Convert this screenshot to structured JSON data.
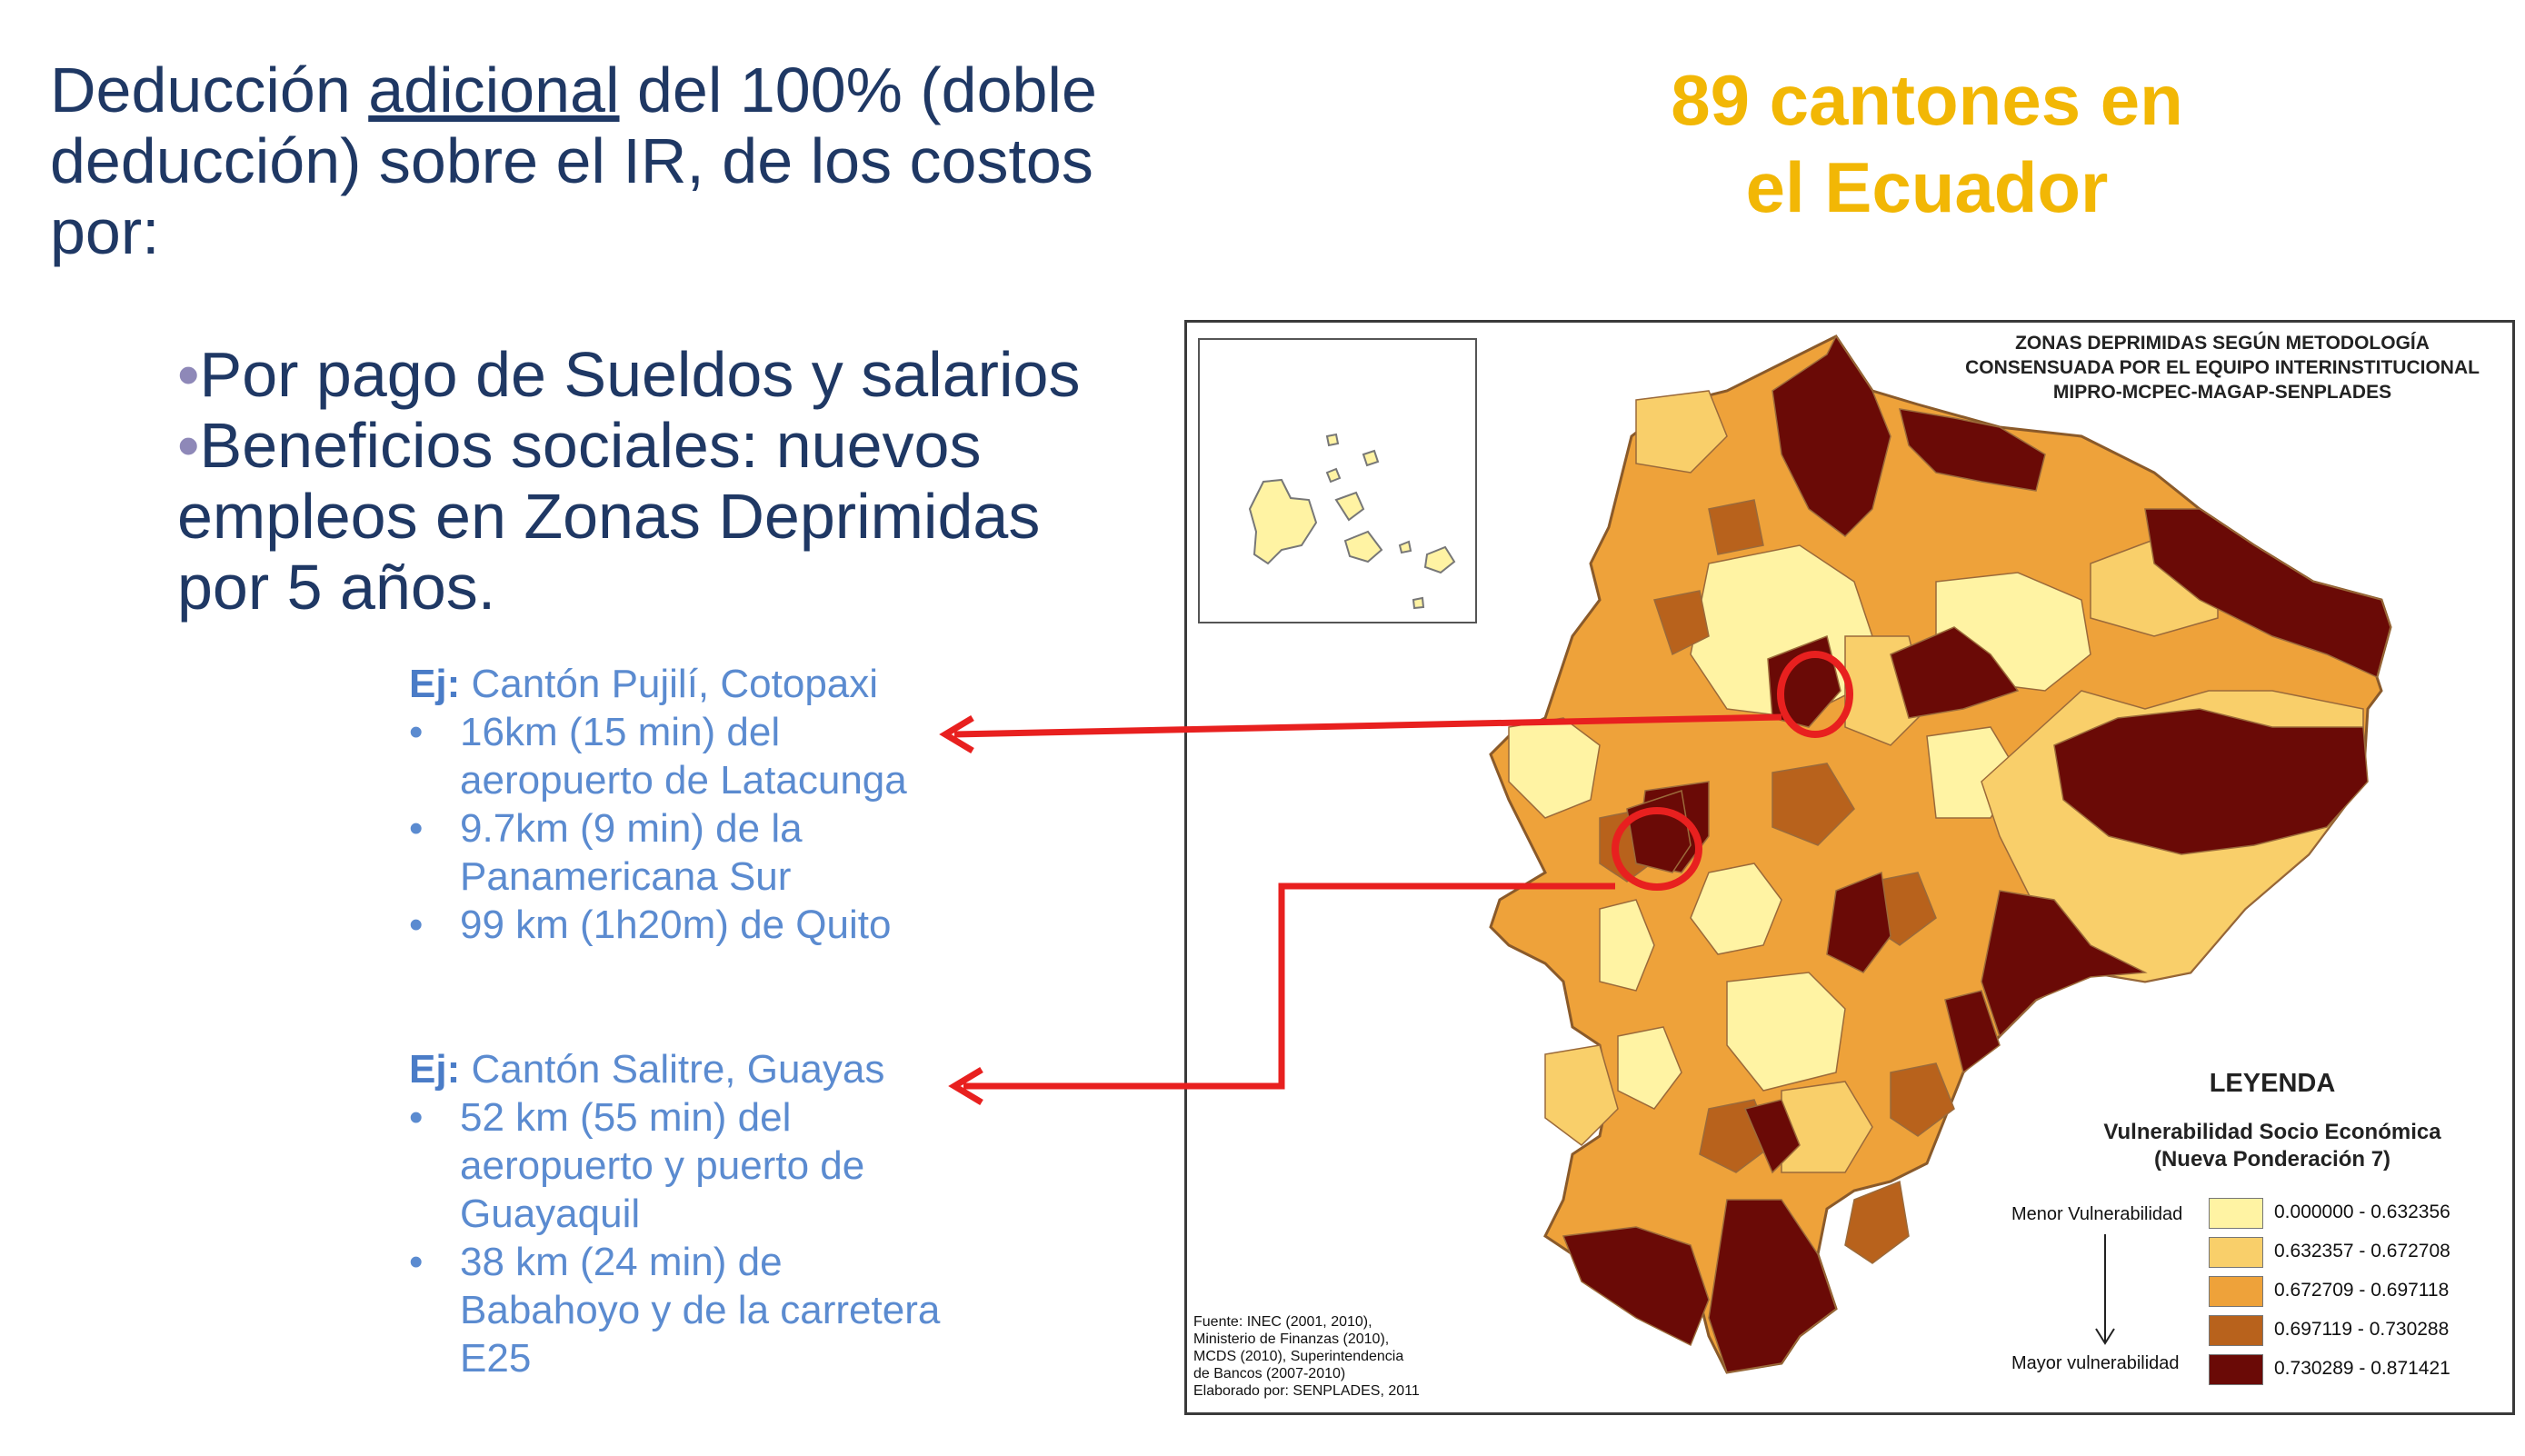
{
  "intro": {
    "part1": "Deducción ",
    "underlined": "adicional",
    "part2": " del 100% (doble deducción) sobre el IR, de los costos por:"
  },
  "bullets": [
    "Por pago de Sueldos y salarios",
    "Beneficios sociales: nuevos empleos en Zonas Deprimidas por 5 años."
  ],
  "headline": {
    "line1": "89 cantones en",
    "line2": "el Ecuador"
  },
  "examples": [
    {
      "prefix": "Ej:",
      "title": " Cantón Pujilí, Cotopaxi",
      "items": [
        "16km (15 min) del aeropuerto de Latacunga",
        "9.7km (9 min) de la Panamericana Sur",
        "99 km (1h20m) de Quito"
      ]
    },
    {
      "prefix": "Ej:",
      "title": " Cantón Salitre, Guayas",
      "items": [
        "52 km (55 min) del aeropuerto y puerto de Guayaquil",
        "38 km (24 min) de Babahoyo  y de la carretera E25"
      ]
    }
  ],
  "map": {
    "title_lines": [
      "ZONAS DEPRIMIDAS SEGÚN METODOLOGÍA",
      "CONSENSUADA POR EL EQUIPO INTERINSTITUCIONAL",
      "MIPRO-MCPEC-MAGAP-SENPLADES"
    ],
    "legend_title": "LEYENDA",
    "legend_subtitle_lines": [
      "Vulnerabilidad Socio Económica",
      "(Nueva Ponderación 7)"
    ],
    "menor_label": "Menor Vulnerabilidad",
    "mayor_label": "Mayor vulnerabilidad",
    "legend": [
      {
        "label": "0.000000 - 0.632356",
        "color": "#fff3a3"
      },
      {
        "label": "0.632357 - 0.672708",
        "color": "#f9cf6a"
      },
      {
        "label": "0.672709 - 0.697118",
        "color": "#eea23a"
      },
      {
        "label": "0.697119 - 0.730288",
        "color": "#b8621c"
      },
      {
        "label": "0.730289 - 0.871421",
        "color": "#6a0a06"
      }
    ],
    "source_lines": [
      "Fuente: INEC (2001, 2010),",
      "Ministerio de Finanzas (2010),",
      "MCDS (2010), Superintendencia",
      "de Bancos (2007-2010)",
      "Elaborado por: SENPLADES, 2011"
    ]
  },
  "colors": {
    "title_blue": "#1f3864",
    "example_blue": "#5b8bd0",
    "headline_gold": "#f2b705",
    "arrow_red": "#e8201f"
  }
}
